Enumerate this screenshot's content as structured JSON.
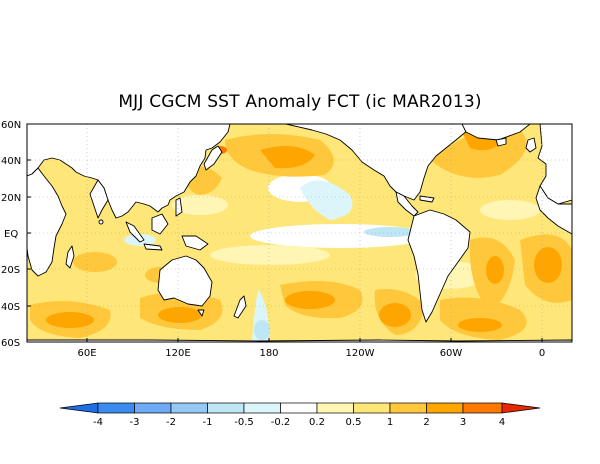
{
  "title": "MJJ CGCM SST Anomaly FCT (ic MAR2013)",
  "lat_labels": [
    "60N",
    "40N",
    "20N",
    "EQ",
    "20S",
    "40S",
    "60S"
  ],
  "lon_labels": [
    "60E",
    "120E",
    "180",
    "120W",
    "60W",
    "0"
  ],
  "colorbar": {
    "ticks": [
      "-4",
      "-3",
      "-2",
      "-1",
      "-0.5",
      "-0.2",
      "0.2",
      "0.5",
      "1",
      "2",
      "3",
      "4"
    ],
    "colors": [
      "#1e6ee6",
      "#3c8cf0",
      "#6eaaf5",
      "#96c8f5",
      "#bee6f5",
      "#dcf5fa",
      "#ffffff",
      "#fff5b4",
      "#ffe678",
      "#ffc83c",
      "#ffa500",
      "#ff7800",
      "#e62800"
    ]
  },
  "colors": {
    "land": "#ffffff",
    "coast": "#000000",
    "grid": "#aaaaaa",
    "warm1": "#fff5b4",
    "warm2": "#ffe678",
    "warm3": "#ffc83c",
    "warm4": "#ffa500",
    "warm5": "#ff7800",
    "cool1": "#dcf5fa",
    "cool2": "#bee6f5"
  }
}
